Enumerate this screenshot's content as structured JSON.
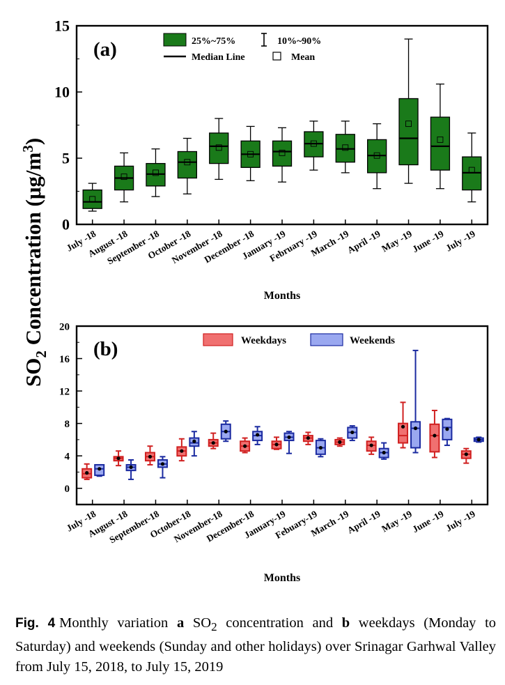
{
  "ylabel_shared": "SO2 Concentration (μg/m3)",
  "caption": {
    "label": "Fig. 4",
    "part1": "Monthly variation",
    "a_letter": "a",
    "part2": "SO",
    "sub2": "2",
    "part3": "concentration and",
    "b_letter": "b",
    "part4": "weekdays (Monday to Saturday) and weekends (Sunday and other holidays) over Srinagar Garhwal Valley from July 15, 2018, to July 15, 2019"
  },
  "colors": {
    "green": "#1a7a1a",
    "red_fill": "#f07070",
    "red_line": "#d02020",
    "blue_fill": "#9aa8f0",
    "blue_line": "#1a2aa0"
  },
  "chart_data": [
    {
      "type": "box",
      "panel_label": "(a)",
      "xlabel": "Months",
      "ylabel": "SO2 Concentration (μg/m3)",
      "ylim": [
        0,
        15
      ],
      "yticks": [
        "0",
        "5",
        "10",
        "15"
      ],
      "legend": {
        "box": "25%~75%",
        "whisker": "10%~90%",
        "median": "Median Line",
        "mean": "Mean"
      },
      "categories": [
        "July -18",
        "August -18",
        "September -18",
        "October -18",
        "November -18",
        "December -18",
        "January -19",
        "February -19",
        "March -19",
        "April -19",
        "May -19",
        "June -19",
        "July -19"
      ],
      "boxes": [
        {
          "p10": 1.0,
          "q1": 1.2,
          "median": 1.7,
          "q3": 2.6,
          "p90": 3.1,
          "mean": 1.9
        },
        {
          "p10": 1.7,
          "q1": 2.6,
          "median": 3.5,
          "q3": 4.4,
          "p90": 5.4,
          "mean": 3.6
        },
        {
          "p10": 2.1,
          "q1": 2.9,
          "median": 3.8,
          "q3": 4.6,
          "p90": 5.7,
          "mean": 3.9
        },
        {
          "p10": 2.3,
          "q1": 3.5,
          "median": 4.7,
          "q3": 5.5,
          "p90": 6.5,
          "mean": 4.7
        },
        {
          "p10": 3.4,
          "q1": 4.6,
          "median": 5.9,
          "q3": 6.9,
          "p90": 8.0,
          "mean": 5.8
        },
        {
          "p10": 3.3,
          "q1": 4.3,
          "median": 5.3,
          "q3": 6.3,
          "p90": 7.4,
          "mean": 5.3
        },
        {
          "p10": 3.2,
          "q1": 4.4,
          "median": 5.5,
          "q3": 6.3,
          "p90": 7.3,
          "mean": 5.4
        },
        {
          "p10": 4.1,
          "q1": 5.1,
          "median": 6.1,
          "q3": 7.0,
          "p90": 7.8,
          "mean": 6.1
        },
        {
          "p10": 3.9,
          "q1": 4.7,
          "median": 5.7,
          "q3": 6.8,
          "p90": 7.8,
          "mean": 5.8
        },
        {
          "p10": 2.7,
          "q1": 3.9,
          "median": 5.2,
          "q3": 6.4,
          "p90": 7.6,
          "mean": 5.2
        },
        {
          "p10": 3.1,
          "q1": 4.5,
          "median": 6.5,
          "q3": 9.5,
          "p90": 14.0,
          "mean": 7.6
        },
        {
          "p10": 2.7,
          "q1": 4.1,
          "median": 5.9,
          "q3": 8.1,
          "p90": 10.6,
          "mean": 6.4
        },
        {
          "p10": 1.7,
          "q1": 2.6,
          "median": 3.9,
          "q3": 5.1,
          "p90": 6.9,
          "mean": 4.1
        }
      ]
    },
    {
      "type": "box",
      "panel_label": "(b)",
      "xlabel": "Months",
      "ylim": [
        -2,
        20
      ],
      "yticks": [
        "0",
        "4",
        "8",
        "12",
        "16",
        "20"
      ],
      "categories": [
        "July -18",
        "August -18",
        "September-18",
        "October-18",
        "November-18",
        "December-18",
        "January-19",
        "Febuary-19",
        "March -19",
        "April -19",
        "May -19",
        "June -19",
        "July -19"
      ],
      "series": [
        {
          "name": "Weekdays",
          "boxes": [
            {
              "p10": 1.1,
              "q1": 1.3,
              "median": 1.8,
              "q3": 2.4,
              "p90": 3.0,
              "mean": 1.9
            },
            {
              "p10": 2.8,
              "q1": 3.4,
              "median": 3.7,
              "q3": 3.9,
              "p90": 4.6,
              "mean": 3.7
            },
            {
              "p10": 2.9,
              "q1": 3.4,
              "median": 3.9,
              "q3": 4.4,
              "p90": 5.2,
              "mean": 3.9
            },
            {
              "p10": 3.4,
              "q1": 4.0,
              "median": 4.6,
              "q3": 5.1,
              "p90": 6.1,
              "mean": 4.6
            },
            {
              "p10": 4.9,
              "q1": 5.2,
              "median": 5.6,
              "q3": 6.0,
              "p90": 6.8,
              "mean": 5.6
            },
            {
              "p10": 4.4,
              "q1": 4.6,
              "median": 5.2,
              "q3": 5.8,
              "p90": 6.2,
              "mean": 5.2
            },
            {
              "p10": 4.8,
              "q1": 4.9,
              "median": 5.4,
              "q3": 5.8,
              "p90": 6.3,
              "mean": 5.4
            },
            {
              "p10": 5.4,
              "q1": 5.8,
              "median": 6.2,
              "q3": 6.5,
              "p90": 6.9,
              "mean": 6.2
            },
            {
              "p10": 5.2,
              "q1": 5.4,
              "median": 5.7,
              "q3": 6.0,
              "p90": 6.2,
              "mean": 5.7
            },
            {
              "p10": 4.2,
              "q1": 4.6,
              "median": 5.3,
              "q3": 5.8,
              "p90": 6.3,
              "mean": 5.3
            },
            {
              "p10": 5.0,
              "q1": 5.6,
              "median": 6.5,
              "q3": 8.0,
              "p90": 10.6,
              "mean": 7.6
            },
            {
              "p10": 3.8,
              "q1": 4.5,
              "median": 6.5,
              "q3": 7.9,
              "p90": 9.6,
              "mean": 6.5
            },
            {
              "p10": 3.1,
              "q1": 3.7,
              "median": 4.2,
              "q3": 4.6,
              "p90": 4.9,
              "mean": 4.2
            }
          ]
        },
        {
          "name": "Weekends",
          "boxes": [
            {
              "p10": 1.5,
              "q1": 1.6,
              "median": 2.4,
              "q3": 2.9,
              "p90": 2.9,
              "mean": 2.4
            },
            {
              "p10": 1.1,
              "q1": 2.2,
              "median": 2.6,
              "q3": 2.9,
              "p90": 3.5,
              "mean": 2.6
            },
            {
              "p10": 1.3,
              "q1": 2.6,
              "median": 3.0,
              "q3": 3.5,
              "p90": 3.9,
              "mean": 3.0
            },
            {
              "p10": 4.0,
              "q1": 5.2,
              "median": 5.6,
              "q3": 6.2,
              "p90": 7.0,
              "mean": 5.8
            },
            {
              "p10": 5.8,
              "q1": 6.1,
              "median": 7.0,
              "q3": 7.9,
              "p90": 8.3,
              "mean": 7.0
            },
            {
              "p10": 5.4,
              "q1": 5.9,
              "median": 6.5,
              "q3": 7.0,
              "p90": 7.6,
              "mean": 6.6
            },
            {
              "p10": 4.3,
              "q1": 5.9,
              "median": 6.3,
              "q3": 6.8,
              "p90": 7.0,
              "mean": 6.3
            },
            {
              "p10": 3.9,
              "q1": 4.2,
              "median": 5.0,
              "q3": 5.9,
              "p90": 6.1,
              "mean": 5.0
            },
            {
              "p10": 5.9,
              "q1": 6.2,
              "median": 6.9,
              "q3": 7.5,
              "p90": 7.7,
              "mean": 6.9
            },
            {
              "p10": 3.6,
              "q1": 3.8,
              "median": 4.4,
              "q3": 4.9,
              "p90": 5.6,
              "mean": 4.4
            },
            {
              "p10": 4.4,
              "q1": 5.0,
              "median": 7.4,
              "q3": 8.2,
              "p90": 17.0,
              "mean": 7.4
            },
            {
              "p10": 5.3,
              "q1": 6.0,
              "median": 7.5,
              "q3": 8.5,
              "p90": 8.6,
              "mean": 7.3
            },
            {
              "p10": 5.7,
              "q1": 5.8,
              "median": 6.0,
              "q3": 6.2,
              "p90": 6.3,
              "mean": 6.0
            }
          ]
        }
      ]
    }
  ]
}
